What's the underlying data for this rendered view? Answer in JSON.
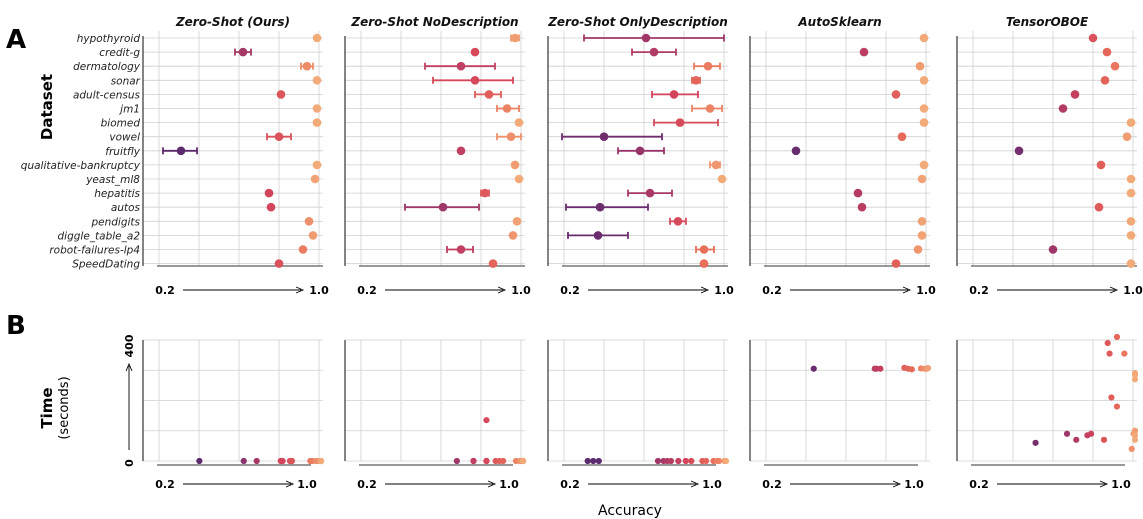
{
  "panels": {
    "a": "A",
    "b": "B"
  },
  "labels": {
    "dataset": "Dataset",
    "time": "Time",
    "time_unit": "(seconds)",
    "accuracy": "Accuracy",
    "x_min": "0.2",
    "x_max": "1.0",
    "t_min": "0",
    "t_max": "400"
  },
  "methods": [
    "Zero-Shot (Ours)",
    "Zero-Shot NoDescription",
    "Zero-Shot OnlyDescription",
    "AutoSklearn",
    "TensorOBOE"
  ],
  "datasets": [
    "hypothyroid",
    "credit-g",
    "dermatology",
    "sonar",
    "adult-census",
    "jm1",
    "biomed",
    "vowel",
    "fruitfly",
    "qualitative-bankruptcy",
    "yeast_ml8",
    "hepatitis",
    "autos",
    "pendigits",
    "diggle_table_a2",
    "robot-failures-lp4",
    "SpeedDating"
  ],
  "chart_data": [
    {
      "type": "scatter",
      "panel": "A",
      "ylabel": "Dataset",
      "xlim": [
        0.2,
        1.0
      ],
      "grid": true,
      "note_style": "dot with error bar per dataset",
      "series": [
        {
          "name": "Zero-Shot (Ours)",
          "values": [
            {
              "mean": 0.99,
              "lo": null,
              "hi": null
            },
            {
              "mean": 0.62,
              "lo": 0.58,
              "hi": 0.66
            },
            {
              "mean": 0.94,
              "lo": 0.91,
              "hi": 0.97
            },
            {
              "mean": 0.99,
              "lo": null,
              "hi": null
            },
            {
              "mean": 0.81,
              "lo": null,
              "hi": null
            },
            {
              "mean": 0.99,
              "lo": null,
              "hi": null
            },
            {
              "mean": 0.99,
              "lo": null,
              "hi": null
            },
            {
              "mean": 0.8,
              "lo": 0.74,
              "hi": 0.86
            },
            {
              "mean": 0.31,
              "lo": 0.22,
              "hi": 0.39
            },
            {
              "mean": 0.99,
              "lo": null,
              "hi": null
            },
            {
              "mean": 0.98,
              "lo": null,
              "hi": null
            },
            {
              "mean": 0.75,
              "lo": null,
              "hi": null
            },
            {
              "mean": 0.76,
              "lo": null,
              "hi": null
            },
            {
              "mean": 0.95,
              "lo": null,
              "hi": null
            },
            {
              "mean": 0.97,
              "lo": null,
              "hi": null
            },
            {
              "mean": 0.92,
              "lo": null,
              "hi": null
            },
            {
              "mean": 0.8,
              "lo": null,
              "hi": null
            }
          ]
        },
        {
          "name": "Zero-Shot NoDescription",
          "values": [
            {
              "mean": 0.97,
              "lo": 0.95,
              "hi": 0.99
            },
            {
              "mean": 0.77,
              "lo": null,
              "hi": null
            },
            {
              "mean": 0.7,
              "lo": 0.52,
              "hi": 0.87
            },
            {
              "mean": 0.77,
              "lo": 0.56,
              "hi": 0.96
            },
            {
              "mean": 0.84,
              "lo": 0.77,
              "hi": 0.9
            },
            {
              "mean": 0.93,
              "lo": 0.88,
              "hi": 0.99
            },
            {
              "mean": 0.99,
              "lo": null,
              "hi": null
            },
            {
              "mean": 0.95,
              "lo": 0.88,
              "hi": 1.0
            },
            {
              "mean": 0.7,
              "lo": null,
              "hi": null
            },
            {
              "mean": 0.97,
              "lo": null,
              "hi": null
            },
            {
              "mean": 0.99,
              "lo": null,
              "hi": null
            },
            {
              "mean": 0.82,
              "lo": 0.8,
              "hi": 0.84
            },
            {
              "mean": 0.61,
              "lo": 0.42,
              "hi": 0.79
            },
            {
              "mean": 0.98,
              "lo": null,
              "hi": null
            },
            {
              "mean": 0.96,
              "lo": null,
              "hi": null
            },
            {
              "mean": 0.7,
              "lo": 0.63,
              "hi": 0.76
            },
            {
              "mean": 0.86,
              "lo": null,
              "hi": null
            }
          ]
        },
        {
          "name": "Zero-Shot OnlyDescription",
          "values": [
            {
              "mean": 0.61,
              "lo": 0.3,
              "hi": 1.0
            },
            {
              "mean": 0.65,
              "lo": 0.54,
              "hi": 0.76
            },
            {
              "mean": 0.92,
              "lo": 0.85,
              "hi": 0.98
            },
            {
              "mean": 0.86,
              "lo": 0.84,
              "hi": 0.88
            },
            {
              "mean": 0.75,
              "lo": 0.64,
              "hi": 0.87
            },
            {
              "mean": 0.93,
              "lo": 0.84,
              "hi": 0.99
            },
            {
              "mean": 0.78,
              "lo": 0.65,
              "hi": 0.97
            },
            {
              "mean": 0.4,
              "lo": 0.19,
              "hi": 0.69
            },
            {
              "mean": 0.58,
              "lo": 0.47,
              "hi": 0.7
            },
            {
              "mean": 0.96,
              "lo": 0.93,
              "hi": 0.98
            },
            {
              "mean": 0.99,
              "lo": null,
              "hi": null
            },
            {
              "mean": 0.63,
              "lo": 0.52,
              "hi": 0.74
            },
            {
              "mean": 0.38,
              "lo": 0.21,
              "hi": 0.62
            },
            {
              "mean": 0.77,
              "lo": 0.73,
              "hi": 0.81
            },
            {
              "mean": 0.37,
              "lo": 0.22,
              "hi": 0.52
            },
            {
              "mean": 0.9,
              "lo": 0.86,
              "hi": 0.95
            },
            {
              "mean": 0.9,
              "lo": null,
              "hi": null
            }
          ]
        },
        {
          "name": "AutoSklearn",
          "values": [
            {
              "mean": 0.99,
              "lo": null,
              "hi": null
            },
            {
              "mean": 0.69,
              "lo": null,
              "hi": null
            },
            {
              "mean": 0.97,
              "lo": null,
              "hi": null
            },
            {
              "mean": 0.99,
              "lo": null,
              "hi": null
            },
            {
              "mean": 0.85,
              "lo": null,
              "hi": null
            },
            {
              "mean": 0.99,
              "lo": null,
              "hi": null
            },
            {
              "mean": 0.99,
              "lo": null,
              "hi": null
            },
            {
              "mean": 0.88,
              "lo": null,
              "hi": null
            },
            {
              "mean": 0.35,
              "lo": null,
              "hi": null
            },
            {
              "mean": 0.99,
              "lo": null,
              "hi": null
            },
            {
              "mean": 0.98,
              "lo": null,
              "hi": null
            },
            {
              "mean": 0.66,
              "lo": null,
              "hi": null
            },
            {
              "mean": 0.68,
              "lo": null,
              "hi": null
            },
            {
              "mean": 0.98,
              "lo": null,
              "hi": null
            },
            {
              "mean": 0.98,
              "lo": null,
              "hi": null
            },
            {
              "mean": 0.96,
              "lo": null,
              "hi": null
            },
            {
              "mean": 0.85,
              "lo": null,
              "hi": null
            }
          ]
        },
        {
          "name": "TensorOBOE",
          "values": [
            {
              "mean": 0.8,
              "lo": null,
              "hi": null
            },
            {
              "mean": 0.87,
              "lo": null,
              "hi": null
            },
            {
              "mean": 0.91,
              "lo": null,
              "hi": null
            },
            {
              "mean": 0.86,
              "lo": null,
              "hi": null
            },
            {
              "mean": 0.71,
              "lo": null,
              "hi": null
            },
            {
              "mean": 0.65,
              "lo": null,
              "hi": null
            },
            {
              "mean": 0.99,
              "lo": null,
              "hi": null
            },
            {
              "mean": 0.97,
              "lo": null,
              "hi": null
            },
            {
              "mean": 0.43,
              "lo": null,
              "hi": null
            },
            {
              "mean": 0.84,
              "lo": null,
              "hi": null
            },
            {
              "mean": 0.99,
              "lo": null,
              "hi": null
            },
            {
              "mean": 0.99,
              "lo": null,
              "hi": null
            },
            {
              "mean": 0.83,
              "lo": null,
              "hi": null
            },
            {
              "mean": 0.99,
              "lo": null,
              "hi": null
            },
            {
              "mean": 0.99,
              "lo": null,
              "hi": null
            },
            {
              "mean": 0.6,
              "lo": null,
              "hi": null
            },
            {
              "mean": 0.99,
              "lo": null,
              "hi": null
            }
          ]
        }
      ]
    },
    {
      "type": "scatter",
      "panel": "B",
      "xlabel": "Accuracy",
      "ylabel": "Time (seconds)",
      "xlim": [
        0.2,
        1.0
      ],
      "ylim": [
        0,
        400
      ],
      "grid": true,
      "series": [
        {
          "name": "Zero-Shot (Ours)",
          "x": [
            0.31,
            0.55,
            0.62,
            0.75,
            0.76,
            0.8,
            0.81,
            0.81,
            0.91,
            0.92,
            0.94,
            0.95,
            0.97,
            0.98,
            0.99,
            0.99,
            0.99
          ],
          "y": [
            0,
            0,
            0,
            0,
            0,
            0,
            0,
            0,
            0,
            0,
            0,
            0,
            0,
            0,
            0,
            0,
            0
          ]
        },
        {
          "name": "Zero-Shot NoDescription",
          "x": [
            0.61,
            0.7,
            0.7,
            0.77,
            0.77,
            0.82,
            0.84,
            0.86,
            0.93,
            0.95,
            0.96,
            0.97,
            0.97,
            0.98,
            0.99,
            0.99,
            0.77
          ],
          "y": [
            0,
            0,
            0,
            0,
            0,
            0,
            0,
            0,
            0,
            0,
            0,
            0,
            0,
            0,
            0,
            0,
            135
          ]
        },
        {
          "name": "Zero-Shot OnlyDescription",
          "x": [
            0.22,
            0.25,
            0.28,
            0.6,
            0.63,
            0.65,
            0.67,
            0.71,
            0.75,
            0.78,
            0.84,
            0.86,
            0.9,
            0.92,
            0.93,
            0.96,
            0.99
          ],
          "y": [
            0,
            0,
            0,
            0,
            0,
            0,
            0,
            0,
            0,
            0,
            0,
            0,
            0,
            0,
            0,
            0,
            0
          ]
        },
        {
          "name": "AutoSklearn",
          "x": [
            0.35,
            0.68,
            0.69,
            0.71,
            0.84,
            0.86,
            0.88,
            0.93,
            0.95,
            0.96,
            0.97
          ],
          "y": [
            305,
            305,
            305,
            305,
            308,
            305,
            303,
            306,
            305,
            305,
            307
          ]
        },
        {
          "name": "TensorOBOE",
          "x": [
            0.43,
            0.6,
            0.65,
            0.71,
            0.73,
            0.8,
            0.82,
            0.83,
            0.84,
            0.87,
            0.91,
            0.96,
            0.97,
            0.98,
            0.99,
            0.99,
            0.99,
            0.87,
            0.95,
            0.99
          ],
          "y": [
            60,
            90,
            70,
            85,
            90,
            70,
            390,
            355,
            210,
            180,
            355,
            90,
            100,
            290,
            285,
            85,
            70,
            410,
            40,
            270
          ]
        }
      ]
    }
  ],
  "colors": {
    "grid": "#d0d0d0",
    "axis": "#333333",
    "palette_low": "#5c2a6e",
    "palette_mid": "#d3435b",
    "palette_high": "#f4b07c"
  }
}
